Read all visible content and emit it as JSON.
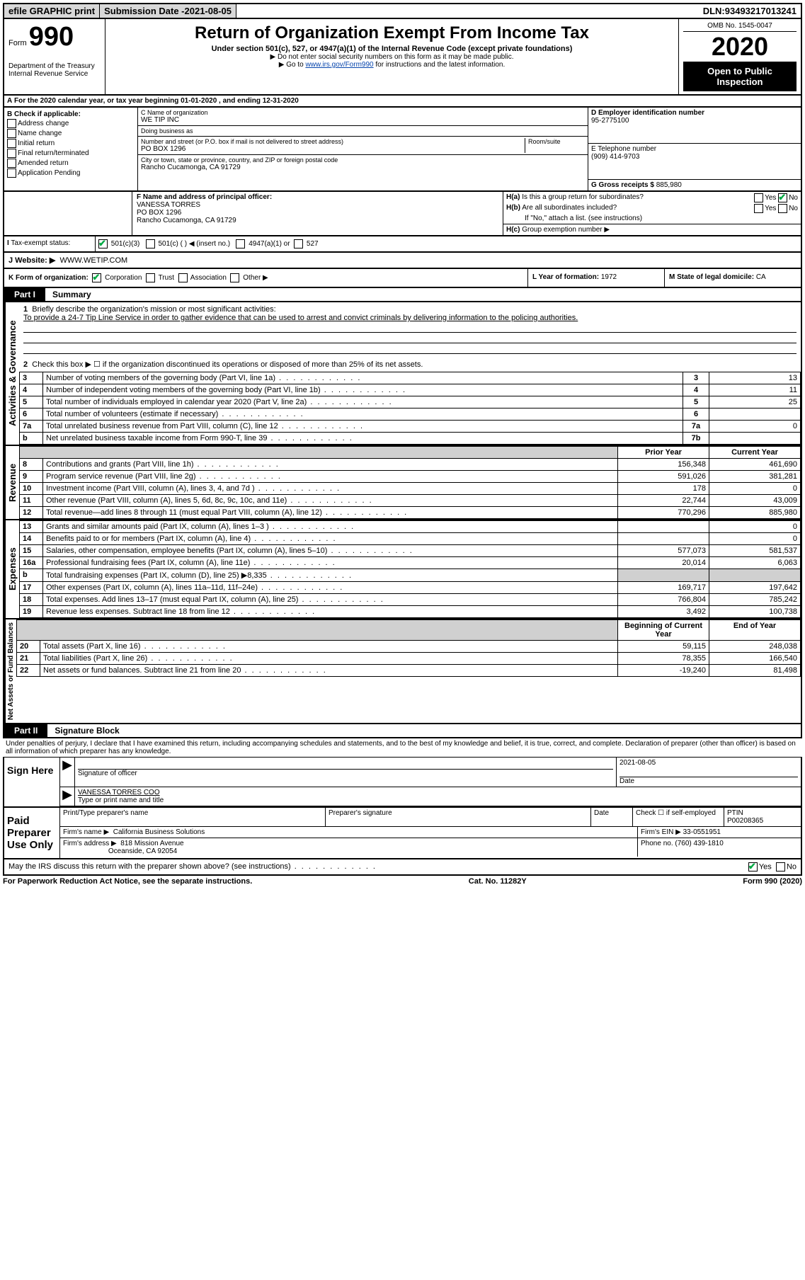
{
  "top": {
    "efile": "efile GRAPHIC print",
    "subdate_label": "Submission Date - ",
    "subdate": "2021-08-05",
    "dln_label": "DLN: ",
    "dln": "93493217013241"
  },
  "header": {
    "form_prefix": "Form",
    "form_no": "990",
    "dept": "Department of the Treasury\nInternal Revenue Service",
    "title": "Return of Organization Exempt From Income Tax",
    "subtitle": "Under section 501(c), 527, or 4947(a)(1) of the Internal Revenue Code (except private foundations)",
    "note1": "▶ Do not enter social security numbers on this form as it may be made public.",
    "note2_pre": "▶ Go to ",
    "note2_link": "www.irs.gov/Form990",
    "note2_post": " for instructions and the latest information.",
    "omb": "OMB No. 1545-0047",
    "year": "2020",
    "inspection": "Open to Public Inspection"
  },
  "period": {
    "line": "For the 2020 calendar year, or tax year beginning ",
    "begin": "01-01-2020",
    "mid": " , and ending ",
    "end": "12-31-2020"
  },
  "boxB": {
    "label": "B Check if applicable:",
    "addr": "Address change",
    "name": "Name change",
    "initial": "Initial return",
    "final": "Final return/terminated",
    "amended": "Amended return",
    "pending": "Application Pending"
  },
  "boxC": {
    "label": "C Name of organization",
    "name": "WE TIP INC",
    "dba_label": "Doing business as",
    "dba": "",
    "addr_label": "Number and street (or P.O. box if mail is not delivered to street address)",
    "room_label": "Room/suite",
    "addr": "PO BOX 1296",
    "city_label": "City or town, state or province, country, and ZIP or foreign postal code",
    "city": "Rancho Cucamonga, CA  91729"
  },
  "boxDE": {
    "d_label": "D Employer identification number",
    "ein": "95-2775100",
    "e_label": "E Telephone number",
    "phone": "(909) 414-9703",
    "g_label": "G Gross receipts $ ",
    "gross": "885,980"
  },
  "boxF": {
    "label": "F Name and address of principal officer:",
    "name": "VANESSA TORRES",
    "addr1": "PO BOX 1296",
    "addr2": "Rancho Cucamonga, CA  91729"
  },
  "boxH": {
    "ha_label": "H(a)",
    "ha_text": "Is this a group return for subordinates?",
    "hb_label": "H(b)",
    "hb_text": "Are all subordinates included?",
    "hb_note": "If \"No,\" attach a list. (see instructions)",
    "hc_label": "H(c)",
    "hc_text": "Group exemption number ▶",
    "yes": "Yes",
    "no": "No"
  },
  "taxStatus": {
    "label": "Tax-exempt status:",
    "s501c3": "501(c)(3)",
    "s501c": "501(c) (  ) ◀ (insert no.)",
    "s4947": "4947(a)(1) or",
    "s527": "527"
  },
  "website": {
    "label": "J    Website: ▶",
    "url": "WWW.WETIP.COM"
  },
  "boxK": {
    "label": "K Form of organization:",
    "corp": "Corporation",
    "trust": "Trust",
    "assoc": "Association",
    "other": "Other ▶",
    "l_label": "L Year of formation: ",
    "l_val": "1972",
    "m_label": "M State of legal domicile: ",
    "m_val": "CA"
  },
  "part1": {
    "part": "Part I",
    "title": "Summary",
    "side1": "Activities & Governance",
    "side2": "Revenue",
    "side3": "Expenses",
    "side4": "Net Assets or Fund Balances",
    "q1": "Briefly describe the organization's mission or most significant activities:",
    "mission": "To provide a 24-7 Tip Line Service in order to gather evidence that can be used to arrest and convict criminals by delivering information to the policing authorities.",
    "q2": "Check this box ▶ ☐ if the organization discontinued its operations or disposed of more than 25% of its net assets.",
    "prior": "Prior Year",
    "current": "Current Year",
    "begin": "Beginning of Current Year",
    "endyr": "End of Year",
    "rows_gov": [
      {
        "n": "3",
        "d": "Number of voting members of the governing body (Part VI, line 1a)",
        "box": "3",
        "v": "13"
      },
      {
        "n": "4",
        "d": "Number of independent voting members of the governing body (Part VI, line 1b)",
        "box": "4",
        "v": "11"
      },
      {
        "n": "5",
        "d": "Total number of individuals employed in calendar year 2020 (Part V, line 2a)",
        "box": "5",
        "v": "25"
      },
      {
        "n": "6",
        "d": "Total number of volunteers (estimate if necessary)",
        "box": "6",
        "v": ""
      },
      {
        "n": "7a",
        "d": "Total unrelated business revenue from Part VIII, column (C), line 12",
        "box": "7a",
        "v": "0"
      },
      {
        "n": "b",
        "d": "Net unrelated business taxable income from Form 990-T, line 39",
        "box": "7b",
        "v": ""
      }
    ],
    "rows_rev": [
      {
        "n": "8",
        "d": "Contributions and grants (Part VIII, line 1h)",
        "p": "156,348",
        "c": "461,690"
      },
      {
        "n": "9",
        "d": "Program service revenue (Part VIII, line 2g)",
        "p": "591,026",
        "c": "381,281"
      },
      {
        "n": "10",
        "d": "Investment income (Part VIII, column (A), lines 3, 4, and 7d )",
        "p": "178",
        "c": "0"
      },
      {
        "n": "11",
        "d": "Other revenue (Part VIII, column (A), lines 5, 6d, 8c, 9c, 10c, and 11e)",
        "p": "22,744",
        "c": "43,009"
      },
      {
        "n": "12",
        "d": "Total revenue—add lines 8 through 11 (must equal Part VIII, column (A), line 12)",
        "p": "770,296",
        "c": "885,980"
      }
    ],
    "rows_exp": [
      {
        "n": "13",
        "d": "Grants and similar amounts paid (Part IX, column (A), lines 1–3 )",
        "p": "",
        "c": "0"
      },
      {
        "n": "14",
        "d": "Benefits paid to or for members (Part IX, column (A), line 4)",
        "p": "",
        "c": "0"
      },
      {
        "n": "15",
        "d": "Salaries, other compensation, employee benefits (Part IX, column (A), lines 5–10)",
        "p": "577,073",
        "c": "581,537"
      },
      {
        "n": "16a",
        "d": "Professional fundraising fees (Part IX, column (A), line 11e)",
        "p": "20,014",
        "c": "6,063"
      },
      {
        "n": "b",
        "d": "Total fundraising expenses (Part IX, column (D), line 25) ▶8,335",
        "p": "GREY",
        "c": "GREY"
      },
      {
        "n": "17",
        "d": "Other expenses (Part IX, column (A), lines 11a–11d, 11f–24e)",
        "p": "169,717",
        "c": "197,642"
      },
      {
        "n": "18",
        "d": "Total expenses. Add lines 13–17 (must equal Part IX, column (A), line 25)",
        "p": "766,804",
        "c": "785,242"
      },
      {
        "n": "19",
        "d": "Revenue less expenses. Subtract line 18 from line 12",
        "p": "3,492",
        "c": "100,738"
      }
    ],
    "rows_net": [
      {
        "n": "20",
        "d": "Total assets (Part X, line 16)",
        "p": "59,115",
        "c": "248,038"
      },
      {
        "n": "21",
        "d": "Total liabilities (Part X, line 26)",
        "p": "78,355",
        "c": "166,540"
      },
      {
        "n": "22",
        "d": "Net assets or fund balances. Subtract line 21 from line 20",
        "p": "-19,240",
        "c": "81,498"
      }
    ]
  },
  "part2": {
    "part": "Part II",
    "title": "Signature Block",
    "decl": "Under penalties of perjury, I declare that I have examined this return, including accompanying schedules and statements, and to the best of my knowledge and belief, it is true, correct, and complete. Declaration of preparer (other than officer) is based on all information of which preparer has any knowledge.",
    "sign_here": "Sign Here",
    "sig_officer": "Signature of officer",
    "sig_date": "2021-08-05",
    "date_label": "Date",
    "officer_name": "VANESSA TORRES  COO",
    "type_label": "Type or print name and title",
    "paid": "Paid Preparer Use Only",
    "prep_name_label": "Print/Type preparer's name",
    "prep_name": "",
    "prep_sig_label": "Preparer's signature",
    "prep_date_label": "Date",
    "check_label": "Check ☐ if self-employed",
    "ptin_label": "PTIN",
    "ptin": "P00208365",
    "firm_name_label": "Firm's name    ▶",
    "firm_name": "California Business Solutions",
    "firm_ein_label": "Firm's EIN ▶ ",
    "firm_ein": "33-0551951",
    "firm_addr_label": "Firm's address ▶",
    "firm_addr1": "818 Mission Avenue",
    "firm_addr2": "Oceanside, CA  92054",
    "phone_label": "Phone no. ",
    "phone": "(760) 439-1810",
    "discuss": "May the IRS discuss this return with the preparer shown above? (see instructions)",
    "discuss_yes": "Yes",
    "discuss_no": "No"
  },
  "footer": {
    "left": "For Paperwork Reduction Act Notice, see the separate instructions.",
    "mid": "Cat. No. 11282Y",
    "right": "Form 990 (2020)"
  }
}
